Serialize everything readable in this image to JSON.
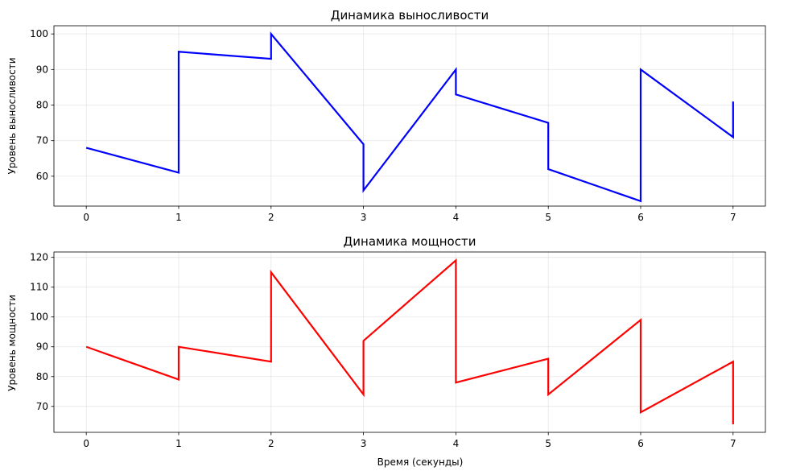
{
  "chart_data": [
    {
      "type": "line",
      "title": "Динамика выносливости",
      "xlabel": "",
      "ylabel": "Уровень выносливости",
      "xlim": [
        -0.35,
        7.35
      ],
      "ylim": [
        51.6,
        102.3
      ],
      "xticks": [
        0,
        1,
        2,
        3,
        4,
        5,
        6,
        7
      ],
      "yticks": [
        60,
        70,
        80,
        90,
        100
      ],
      "grid": true,
      "series": [
        {
          "color": "#0000ff",
          "x": [
            0,
            1,
            1,
            2,
            2,
            3,
            3,
            4,
            4,
            5,
            5,
            6,
            6,
            7,
            7
          ],
          "y": [
            68,
            61,
            95,
            93,
            100,
            69,
            56,
            90,
            83,
            75,
            62,
            53,
            90,
            71,
            81
          ]
        }
      ]
    },
    {
      "type": "line",
      "title": "Динамика мощности",
      "xlabel": "Время (секунды)",
      "ylabel": "Уровень мощности",
      "xlim": [
        -0.35,
        7.35
      ],
      "ylim": [
        61.3,
        121.8
      ],
      "xticks": [
        0,
        1,
        2,
        3,
        4,
        5,
        6,
        7
      ],
      "yticks": [
        70,
        80,
        90,
        100,
        110,
        120
      ],
      "grid": true,
      "series": [
        {
          "color": "#ff0000",
          "x": [
            0,
            1,
            1,
            2,
            2,
            3,
            3,
            4,
            4,
            5,
            5,
            6,
            6,
            7,
            7
          ],
          "y": [
            90,
            79,
            90,
            85,
            115,
            74,
            92,
            119,
            78,
            86,
            74,
            99,
            68,
            85,
            64
          ]
        }
      ]
    }
  ]
}
